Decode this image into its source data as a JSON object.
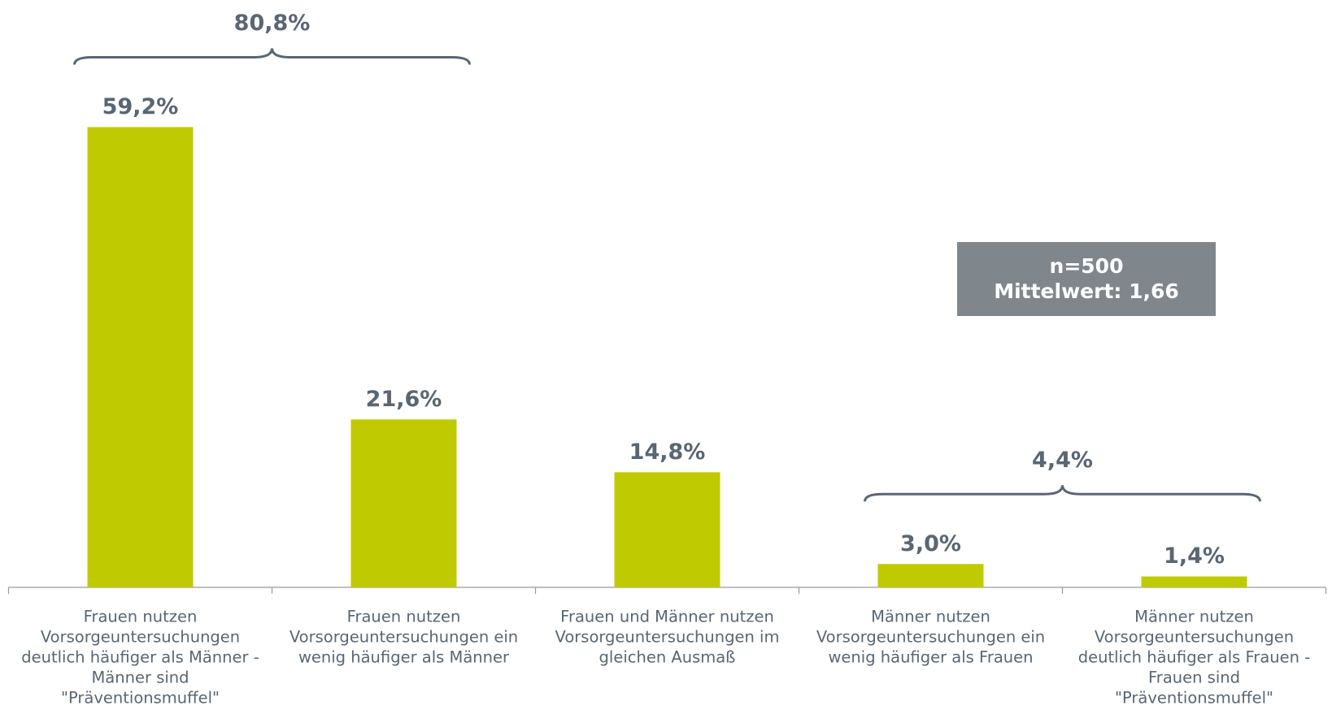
{
  "chart_data": {
    "type": "bar",
    "categories": [
      [
        "Frauen nutzen",
        "Vorsorgeuntersuchungen",
        "deutlich häufiger als Männer -",
        "Männer sind",
        "\"Präventionsmuffel\""
      ],
      [
        "Frauen nutzen",
        "Vorsorgeuntersuchungen ein",
        "wenig häufiger als Männer"
      ],
      [
        "Frauen und Männer nutzen",
        "Vorsorgeuntersuchungen im",
        "gleichen Ausmaß"
      ],
      [
        "Männer nutzen",
        "Vorsorgeuntersuchungen ein",
        "wenig häufiger als Frauen"
      ],
      [
        "Männer nutzen",
        "Vorsorgeuntersuchungen",
        "deutlich häufiger als Frauen -",
        "Frauen sind",
        "\"Präventionsmuffel\""
      ]
    ],
    "values": [
      59.2,
      21.6,
      14.8,
      3.0,
      1.4
    ],
    "value_labels": [
      "59,2%",
      "21,6%",
      "14,8%",
      "3,0%",
      "1,4%"
    ],
    "color": "#bfcb00",
    "annotations": [
      {
        "text": "80,8%"
      },
      {
        "text": "4,4%"
      }
    ],
    "note": [
      "n=500",
      "Mittelwert: 1,66"
    ]
  }
}
